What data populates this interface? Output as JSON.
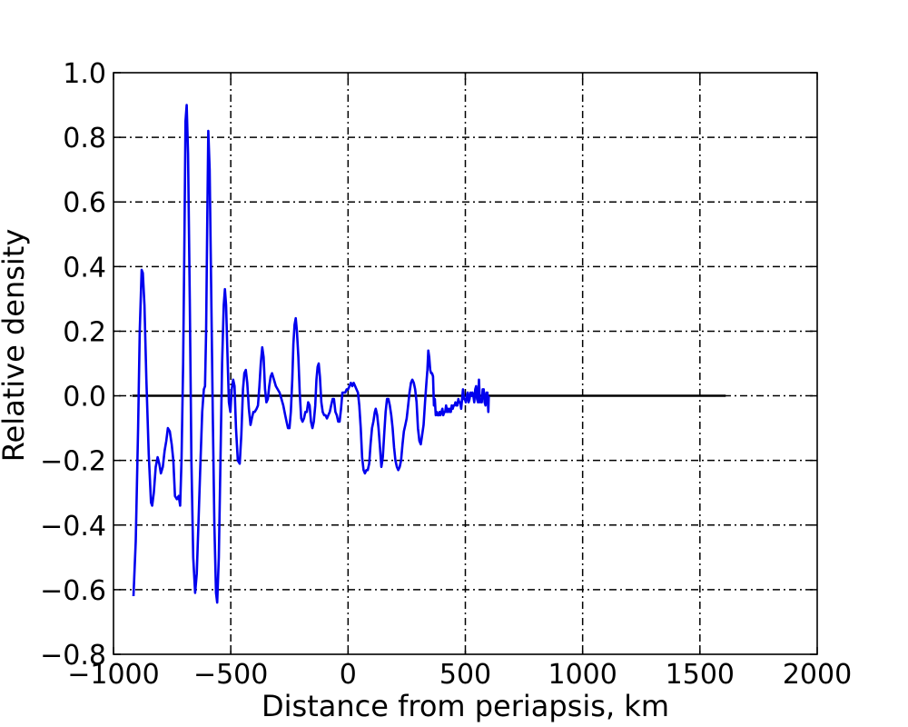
{
  "chart_data": {
    "type": "line",
    "title": "",
    "xlabel": "Distance from periapsis, km",
    "ylabel": "Relative density",
    "xlim": [
      -1000,
      2000
    ],
    "ylim": [
      -0.8,
      1.0
    ],
    "xticks": [
      -1000,
      -500,
      0,
      500,
      1000,
      1500,
      2000
    ],
    "yticks": [
      -0.8,
      -0.6,
      -0.4,
      -0.2,
      0.0,
      0.2,
      0.4,
      0.6,
      0.8,
      1.0
    ],
    "xtick_labels": [
      "−1000",
      "−500",
      "0",
      "500",
      "1000",
      "1500",
      "2000"
    ],
    "ytick_labels": [
      "−0.8",
      "−0.6",
      "−0.4",
      "−0.2",
      "0.0",
      "0.2",
      "0.4",
      "0.6",
      "0.8",
      "1.0"
    ],
    "grid": true,
    "colors": {
      "series": "#0000ee",
      "baseline": "#000000"
    },
    "baseline": {
      "x": [
        -920,
        1610
      ],
      "y": 0.0
    },
    "series": [
      {
        "color": "#0000ee",
        "points": [
          [
            -915,
            -0.62
          ],
          [
            -905,
            -0.45
          ],
          [
            -895,
            -0.1
          ],
          [
            -888,
            0.2
          ],
          [
            -880,
            0.39
          ],
          [
            -875,
            0.38
          ],
          [
            -868,
            0.28
          ],
          [
            -860,
            0.05
          ],
          [
            -850,
            -0.18
          ],
          [
            -840,
            -0.33
          ],
          [
            -835,
            -0.34
          ],
          [
            -828,
            -0.3
          ],
          [
            -820,
            -0.22
          ],
          [
            -812,
            -0.19
          ],
          [
            -805,
            -0.21
          ],
          [
            -798,
            -0.24
          ],
          [
            -790,
            -0.22
          ],
          [
            -782,
            -0.17
          ],
          [
            -775,
            -0.14
          ],
          [
            -768,
            -0.1
          ],
          [
            -760,
            -0.11
          ],
          [
            -752,
            -0.15
          ],
          [
            -745,
            -0.2
          ],
          [
            -738,
            -0.31
          ],
          [
            -730,
            -0.32
          ],
          [
            -722,
            -0.31
          ],
          [
            -716,
            -0.34
          ],
          [
            -710,
            -0.2
          ],
          [
            -703,
            0.1
          ],
          [
            -698,
            0.45
          ],
          [
            -693,
            0.85
          ],
          [
            -688,
            0.9
          ],
          [
            -682,
            0.75
          ],
          [
            -675,
            0.3
          ],
          [
            -668,
            -0.2
          ],
          [
            -660,
            -0.5
          ],
          [
            -652,
            -0.61
          ],
          [
            -645,
            -0.55
          ],
          [
            -638,
            -0.4
          ],
          [
            -630,
            -0.22
          ],
          [
            -622,
            -0.05
          ],
          [
            -615,
            0.02
          ],
          [
            -610,
            0.03
          ],
          [
            -605,
            0.2
          ],
          [
            -600,
            0.55
          ],
          [
            -596,
            0.82
          ],
          [
            -590,
            0.7
          ],
          [
            -584,
            0.35
          ],
          [
            -577,
            -0.05
          ],
          [
            -570,
            -0.4
          ],
          [
            -563,
            -0.61
          ],
          [
            -558,
            -0.64
          ],
          [
            -551,
            -0.5
          ],
          [
            -544,
            -0.2
          ],
          [
            -537,
            0.1
          ],
          [
            -530,
            0.28
          ],
          [
            -525,
            0.33
          ],
          [
            -520,
            0.28
          ],
          [
            -514,
            0.12
          ],
          [
            -508,
            -0.02
          ],
          [
            -502,
            -0.05
          ],
          [
            -496,
            0.02
          ],
          [
            -490,
            0.05
          ],
          [
            -484,
            0.03
          ],
          [
            -478,
            -0.1
          ],
          [
            -470,
            -0.2
          ],
          [
            -462,
            -0.21
          ],
          [
            -455,
            -0.12
          ],
          [
            -448,
            0.02
          ],
          [
            -442,
            0.07
          ],
          [
            -436,
            0.08
          ],
          [
            -430,
            0.04
          ],
          [
            -423,
            -0.04
          ],
          [
            -416,
            -0.09
          ],
          [
            -410,
            -0.07
          ],
          [
            -404,
            -0.05
          ],
          [
            -398,
            -0.05
          ],
          [
            -390,
            -0.04
          ],
          [
            -384,
            -0.03
          ],
          [
            -378,
            0.03
          ],
          [
            -372,
            0.1
          ],
          [
            -366,
            0.15
          ],
          [
            -360,
            0.12
          ],
          [
            -354,
            0.02
          ],
          [
            -348,
            -0.02
          ],
          [
            -342,
            -0.01
          ],
          [
            -336,
            0.03
          ],
          [
            -330,
            0.06
          ],
          [
            -324,
            0.07
          ],
          [
            -316,
            0.05
          ],
          [
            -308,
            0.03
          ],
          [
            -300,
            0.02
          ],
          [
            -292,
            0.01
          ],
          [
            -284,
            -0.01
          ],
          [
            -276,
            -0.03
          ],
          [
            -268,
            -0.06
          ],
          [
            -262,
            -0.08
          ],
          [
            -256,
            -0.1
          ],
          [
            -250,
            -0.1
          ],
          [
            -244,
            -0.05
          ],
          [
            -238,
            0.05
          ],
          [
            -233,
            0.16
          ],
          [
            -228,
            0.22
          ],
          [
            -223,
            0.24
          ],
          [
            -218,
            0.2
          ],
          [
            -212,
            0.12
          ],
          [
            -206,
            0.01
          ],
          [
            -200,
            -0.07
          ],
          [
            -194,
            -0.08
          ],
          [
            -188,
            -0.07
          ],
          [
            -182,
            -0.05
          ],
          [
            -176,
            -0.05
          ],
          [
            -170,
            -0.02
          ],
          [
            -164,
            -0.03
          ],
          [
            -158,
            -0.08
          ],
          [
            -152,
            -0.1
          ],
          [
            -146,
            -0.08
          ],
          [
            -140,
            -0.03
          ],
          [
            -135,
            0.05
          ],
          [
            -130,
            0.09
          ],
          [
            -125,
            0.1
          ],
          [
            -120,
            0.06
          ],
          [
            -114,
            -0.02
          ],
          [
            -108,
            -0.05
          ],
          [
            -102,
            -0.06
          ],
          [
            -96,
            -0.06
          ],
          [
            -90,
            -0.07
          ],
          [
            -84,
            -0.06
          ],
          [
            -78,
            -0.05
          ],
          [
            -72,
            -0.03
          ],
          [
            -66,
            -0.01
          ],
          [
            -60,
            -0.01
          ],
          [
            -54,
            -0.05
          ],
          [
            -48,
            -0.06
          ],
          [
            -42,
            -0.08
          ],
          [
            -36,
            -0.08
          ],
          [
            -30,
            -0.04
          ],
          [
            -24,
            0.01
          ],
          [
            -18,
            0.01
          ],
          [
            -12,
            0.01
          ],
          [
            -6,
            0.02
          ],
          [
            0,
            0.02
          ],
          [
            6,
            0.03
          ],
          [
            12,
            0.04
          ],
          [
            18,
            0.03
          ],
          [
            24,
            0.04
          ],
          [
            30,
            0.03
          ],
          [
            36,
            0.02
          ],
          [
            42,
            0.01
          ],
          [
            48,
            -0.03
          ],
          [
            54,
            -0.1
          ],
          [
            60,
            -0.19
          ],
          [
            66,
            -0.23
          ],
          [
            72,
            -0.24
          ],
          [
            78,
            -0.23
          ],
          [
            84,
            -0.23
          ],
          [
            90,
            -0.21
          ],
          [
            96,
            -0.15
          ],
          [
            102,
            -0.1
          ],
          [
            108,
            -0.08
          ],
          [
            114,
            -0.05
          ],
          [
            118,
            -0.04
          ],
          [
            124,
            -0.06
          ],
          [
            130,
            -0.1
          ],
          [
            136,
            -0.16
          ],
          [
            142,
            -0.22
          ],
          [
            148,
            -0.19
          ],
          [
            154,
            -0.12
          ],
          [
            160,
            -0.05
          ],
          [
            166,
            -0.01
          ],
          [
            172,
            -0.01
          ],
          [
            178,
            -0.03
          ],
          [
            184,
            -0.06
          ],
          [
            190,
            -0.1
          ],
          [
            196,
            -0.16
          ],
          [
            202,
            -0.2
          ],
          [
            208,
            -0.22
          ],
          [
            214,
            -0.23
          ],
          [
            220,
            -0.22
          ],
          [
            226,
            -0.2
          ],
          [
            232,
            -0.15
          ],
          [
            238,
            -0.11
          ],
          [
            244,
            -0.09
          ],
          [
            250,
            -0.07
          ],
          [
            256,
            -0.03
          ],
          [
            262,
            0.01
          ],
          [
            268,
            0.04
          ],
          [
            274,
            0.05
          ],
          [
            280,
            0.04
          ],
          [
            286,
            0.02
          ],
          [
            292,
            -0.02
          ],
          [
            298,
            -0.1
          ],
          [
            304,
            -0.14
          ],
          [
            310,
            -0.15
          ],
          [
            316,
            -0.12
          ],
          [
            322,
            -0.09
          ],
          [
            328,
            -0.02
          ],
          [
            334,
            0.04
          ],
          [
            338,
            0.08
          ],
          [
            342,
            0.14
          ],
          [
            346,
            0.12
          ],
          [
            350,
            0.08
          ],
          [
            354,
            0.07
          ],
          [
            358,
            0.07
          ],
          [
            362,
            0.06
          ],
          [
            366,
            -0.03
          ],
          [
            370,
            -0.01
          ],
          [
            374,
            -0.06
          ],
          [
            378,
            -0.05
          ],
          [
            382,
            -0.06
          ],
          [
            386,
            -0.06
          ],
          [
            390,
            -0.05
          ],
          [
            394,
            -0.06
          ],
          [
            398,
            -0.05
          ],
          [
            402,
            -0.04
          ],
          [
            406,
            -0.06
          ],
          [
            410,
            -0.05
          ],
          [
            414,
            -0.05
          ],
          [
            418,
            -0.03
          ],
          [
            422,
            -0.05
          ],
          [
            426,
            -0.04
          ],
          [
            430,
            -0.05
          ],
          [
            434,
            -0.04
          ],
          [
            438,
            -0.05
          ],
          [
            442,
            -0.03
          ],
          [
            446,
            -0.04
          ],
          [
            450,
            -0.03
          ],
          [
            454,
            -0.03
          ],
          [
            458,
            -0.02
          ],
          [
            462,
            -0.03
          ],
          [
            466,
            -0.03
          ],
          [
            470,
            -0.01
          ],
          [
            474,
            -0.02
          ],
          [
            478,
            -0.02
          ],
          [
            482,
            -0.04
          ],
          [
            486,
            -0.01
          ],
          [
            490,
            0.02
          ],
          [
            494,
            -0.01
          ],
          [
            498,
            -0.01
          ],
          [
            502,
            -0.02
          ],
          [
            506,
            0.0
          ],
          [
            510,
            0.01
          ],
          [
            514,
            -0.02
          ],
          [
            518,
            -0.01
          ],
          [
            522,
            0.01
          ],
          [
            526,
            0.0
          ],
          [
            530,
            0.01
          ],
          [
            534,
            0.0
          ],
          [
            538,
            -0.02
          ],
          [
            542,
            0.02
          ],
          [
            546,
            0.03
          ],
          [
            550,
            -0.01
          ],
          [
            554,
            -0.02
          ],
          [
            558,
            0.05
          ],
          [
            562,
            -0.02
          ],
          [
            566,
            -0.01
          ],
          [
            570,
            -0.02
          ],
          [
            574,
            0.02
          ],
          [
            578,
            0.02
          ],
          [
            582,
            -0.02
          ],
          [
            586,
            -0.03
          ],
          [
            590,
            0.01
          ],
          [
            594,
            0.01
          ],
          [
            598,
            -0.05
          ],
          [
            600,
            0.0
          ]
        ]
      }
    ]
  }
}
